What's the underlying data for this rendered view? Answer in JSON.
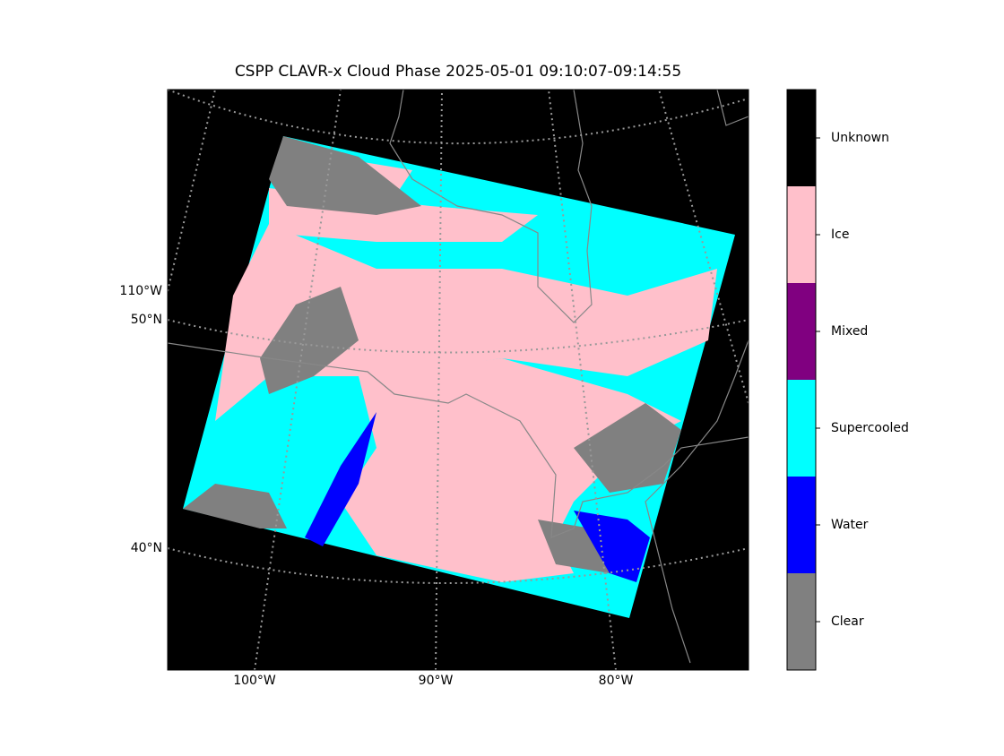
{
  "title": "CSPP CLAVR-x Cloud Phase 2025-05-01 09:10:07-09:14:55",
  "map": {
    "lon_labels": [
      "100°W",
      "90°W",
      "80°W"
    ],
    "lat_labels": [
      "110°W",
      "50°N",
      "40°N"
    ]
  },
  "colorbar": {
    "categories": [
      {
        "label": "Unknown",
        "color": "#000000"
      },
      {
        "label": "Ice",
        "color": "#ffc0cb"
      },
      {
        "label": "Mixed",
        "color": "#800080"
      },
      {
        "label": "Supercooled",
        "color": "#00ffff"
      },
      {
        "label": "Water",
        "color": "#0000ff"
      },
      {
        "label": "Clear",
        "color": "#808080"
      }
    ]
  }
}
